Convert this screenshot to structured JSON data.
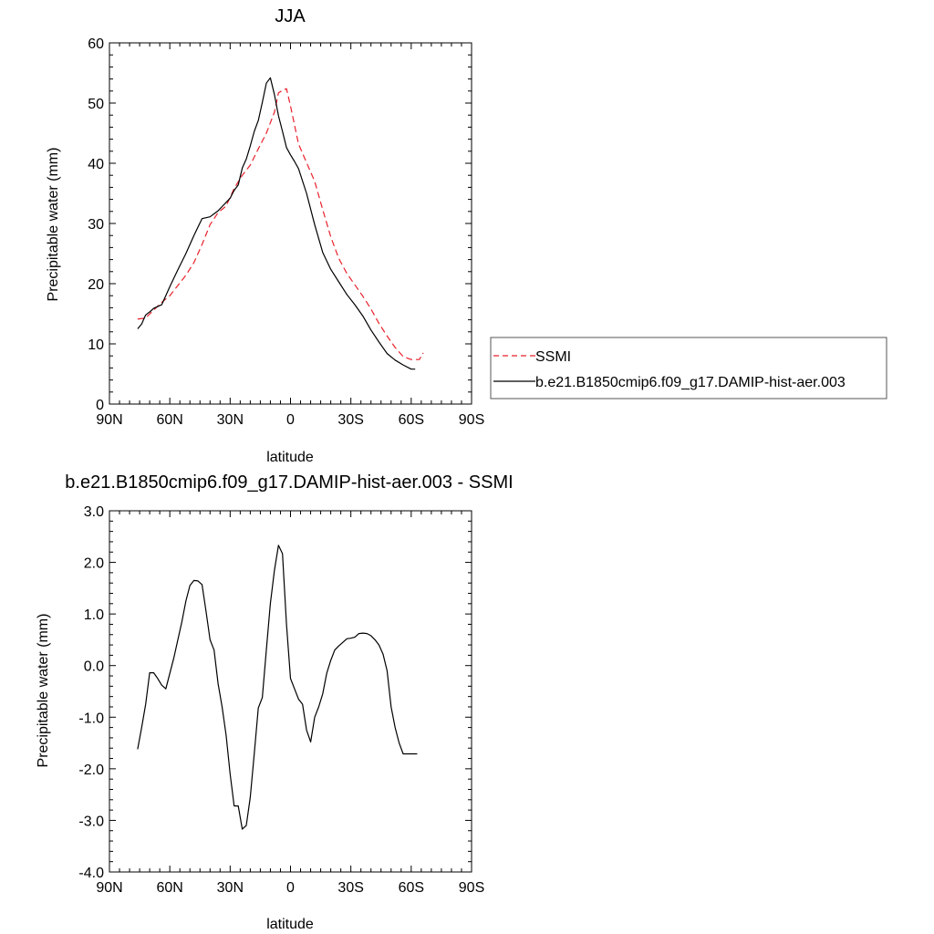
{
  "chart_data": [
    {
      "type": "line",
      "title": "JJA",
      "xlabel": "latitude",
      "ylabel": "Precipitable water (mm)",
      "xlim": [
        90,
        -90
      ],
      "ylim": [
        0,
        60
      ],
      "xticks": [
        90,
        60,
        30,
        0,
        -30,
        -60,
        -90
      ],
      "xtick_labels": [
        "90N",
        "60N",
        "30N",
        "0",
        "30S",
        "60S",
        "90S"
      ],
      "yticks": [
        0,
        10,
        20,
        30,
        40,
        50,
        60
      ],
      "ytick_labels": [
        "0",
        "10",
        "20",
        "30",
        "40",
        "50",
        "60"
      ],
      "grid": false,
      "legend": "right",
      "series": [
        {
          "name": "SSMI",
          "color": "#e8212b",
          "dash": "dashed",
          "x": [
            76,
            72,
            68,
            64,
            60,
            56,
            52,
            48,
            44,
            40,
            36,
            32,
            28,
            24,
            20,
            16,
            12,
            8,
            6,
            4,
            2,
            0,
            -4,
            -8,
            -12,
            -16,
            -20,
            -24,
            -28,
            -32,
            -36,
            -40,
            -44,
            -48,
            -52,
            -56,
            -60,
            -64,
            -66
          ],
          "y": [
            14.1,
            14.3,
            15.6,
            16.9,
            18,
            19.7,
            21.4,
            23.5,
            26.5,
            29.8,
            31.8,
            32.9,
            35.8,
            38,
            39.7,
            42.4,
            45,
            48.5,
            51.7,
            52.1,
            52.4,
            49.5,
            43.2,
            40.1,
            37,
            32.3,
            27.8,
            24.2,
            21.7,
            19.8,
            17.9,
            15.8,
            13.4,
            11.3,
            9.4,
            7.9,
            7.4,
            7.4,
            8.5
          ]
        },
        {
          "name": "b.e21.B1850cmip6.f09_g17.DAMIP-hist-aer.003",
          "color": "#000000",
          "dash": "solid",
          "x": [
            76,
            74,
            72,
            70,
            68,
            64,
            60,
            56,
            52,
            48,
            44,
            40,
            38,
            36,
            34,
            32,
            30,
            28,
            26,
            24,
            22,
            20,
            18,
            16,
            14,
            12,
            10,
            8,
            6,
            4,
            2,
            0,
            -2,
            -4,
            -8,
            -12,
            -16,
            -20,
            -24,
            -28,
            -32,
            -36,
            -40,
            -44,
            -48,
            -52,
            -56,
            -60,
            -62
          ],
          "y": [
            12.5,
            13.3,
            14.8,
            15.3,
            15.9,
            16.5,
            19.5,
            22.3,
            25,
            28,
            30.8,
            31.1,
            31.6,
            32.1,
            32.8,
            33.5,
            34.2,
            35.5,
            36.4,
            39.2,
            40.7,
            42.9,
            45.3,
            47.1,
            50.1,
            53.3,
            54.2,
            51.4,
            47.9,
            45.3,
            42.6,
            41.4,
            40.3,
            39.1,
            35,
            29.8,
            25.2,
            22.4,
            20.3,
            18.2,
            16.5,
            14.6,
            12.3,
            10.3,
            8.4,
            7.3,
            6.5,
            5.8,
            5.8
          ]
        }
      ]
    },
    {
      "type": "line",
      "title": "b.e21.B1850cmip6.f09_g17.DAMIP-hist-aer.003 - SSMI",
      "xlabel": "latitude",
      "ylabel": "Precipitable water (mm)",
      "xlim": [
        90,
        -90
      ],
      "ylim": [
        -4,
        3
      ],
      "xticks": [
        90,
        60,
        30,
        0,
        -30,
        -60,
        -90
      ],
      "xtick_labels": [
        "90N",
        "60N",
        "30N",
        "0",
        "30S",
        "60S",
        "90S"
      ],
      "yticks": [
        -4,
        -3,
        -2,
        -1,
        0,
        1,
        2,
        3
      ],
      "ytick_labels": [
        "-4.0",
        "-3.0",
        "-2.0",
        "-1.0",
        "0.0",
        "1.0",
        "2.0",
        "3.0"
      ],
      "grid": false,
      "series": [
        {
          "color": "#000000",
          "dash": "solid",
          "x": [
            76,
            74,
            72,
            70,
            68,
            66,
            64,
            62,
            60,
            58,
            56,
            54,
            52,
            50,
            48,
            46,
            44,
            42,
            40,
            38,
            36,
            34,
            32,
            30,
            28,
            26,
            24,
            22,
            20,
            18,
            16,
            14,
            12,
            10,
            8,
            6,
            4,
            2,
            0,
            -2,
            -4,
            -6,
            -8,
            -10,
            -12,
            -14,
            -16,
            -18,
            -20,
            -22,
            -24,
            -26,
            -28,
            -30,
            -32,
            -34,
            -36,
            -38,
            -40,
            -42,
            -44,
            -46,
            -48,
            -50,
            -52,
            -54,
            -56,
            -58,
            -60,
            -62,
            -63
          ],
          "y": [
            -1.62,
            -1.2,
            -0.75,
            -0.14,
            -0.14,
            -0.25,
            -0.38,
            -0.45,
            -0.15,
            0.15,
            0.5,
            0.85,
            1.25,
            1.55,
            1.65,
            1.64,
            1.57,
            1.05,
            0.5,
            0.3,
            -0.35,
            -0.8,
            -1.35,
            -2.1,
            -2.72,
            -2.72,
            -3.17,
            -3.1,
            -2.55,
            -1.7,
            -0.82,
            -0.62,
            0.3,
            1.2,
            1.85,
            2.33,
            2.17,
            0.8,
            -0.25,
            -0.45,
            -0.65,
            -0.75,
            -1.25,
            -1.48,
            -1.0,
            -0.8,
            -0.55,
            -0.15,
            0.1,
            0.3,
            0.38,
            0.45,
            0.52,
            0.53,
            0.55,
            0.62,
            0.63,
            0.62,
            0.58,
            0.5,
            0.4,
            0.22,
            -0.1,
            -0.8,
            -1.2,
            -1.5,
            -1.71,
            -1.71,
            -1.71,
            -1.71,
            -1.71
          ]
        }
      ]
    }
  ]
}
